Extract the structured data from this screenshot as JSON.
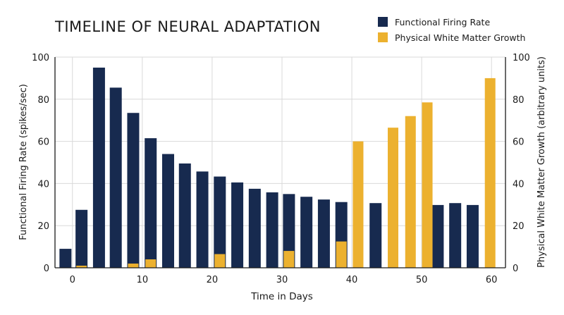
{
  "chart_data": {
    "type": "bar",
    "title": "TIMELINE OF NEURAL ADAPTATION",
    "xlabel": "Time in Days",
    "ylabel_left": "Functional Firing Rate (spikes/sec)",
    "ylabel_right": "Physical White Matter Growth (arbitrary units)",
    "xlim": [
      -2.5,
      62
    ],
    "ylim_left": [
      0,
      100
    ],
    "ylim_right": [
      0,
      100
    ],
    "x_ticks": [
      0,
      10,
      20,
      30,
      40,
      50,
      60
    ],
    "y_ticks": [
      0,
      20,
      40,
      60,
      80,
      100
    ],
    "grid": true,
    "legend_position": "top-right",
    "series": [
      {
        "name": "Functional Firing Rate",
        "color": "#172a4f",
        "axis": "left",
        "x": [
          -1,
          1.3,
          3.8,
          6.2,
          8.7,
          11.2,
          13.7,
          16.1,
          18.6,
          21.1,
          23.6,
          26.1,
          28.6,
          31.0,
          33.5,
          36.0,
          38.5,
          43.4,
          52.3,
          54.8,
          57.3
        ],
        "values": [
          9,
          27.5,
          95,
          85.5,
          73.5,
          61.5,
          54,
          49.5,
          45.7,
          43.3,
          40.5,
          37.5,
          35.8,
          35,
          33.7,
          32.4,
          31.2,
          30.7,
          29.8,
          30.7,
          29.8
        ]
      },
      {
        "name": "Physical White Matter Growth",
        "color": "#ecb12f",
        "axis": "right",
        "x": [
          1.3,
          8.7,
          11.2,
          21.1,
          31.0,
          38.5,
          40.9,
          45.9,
          48.4,
          50.8,
          59.8
        ],
        "values": [
          1,
          2,
          4,
          6.5,
          8,
          12.5,
          60,
          66.5,
          72,
          78.5,
          90
        ]
      }
    ]
  }
}
